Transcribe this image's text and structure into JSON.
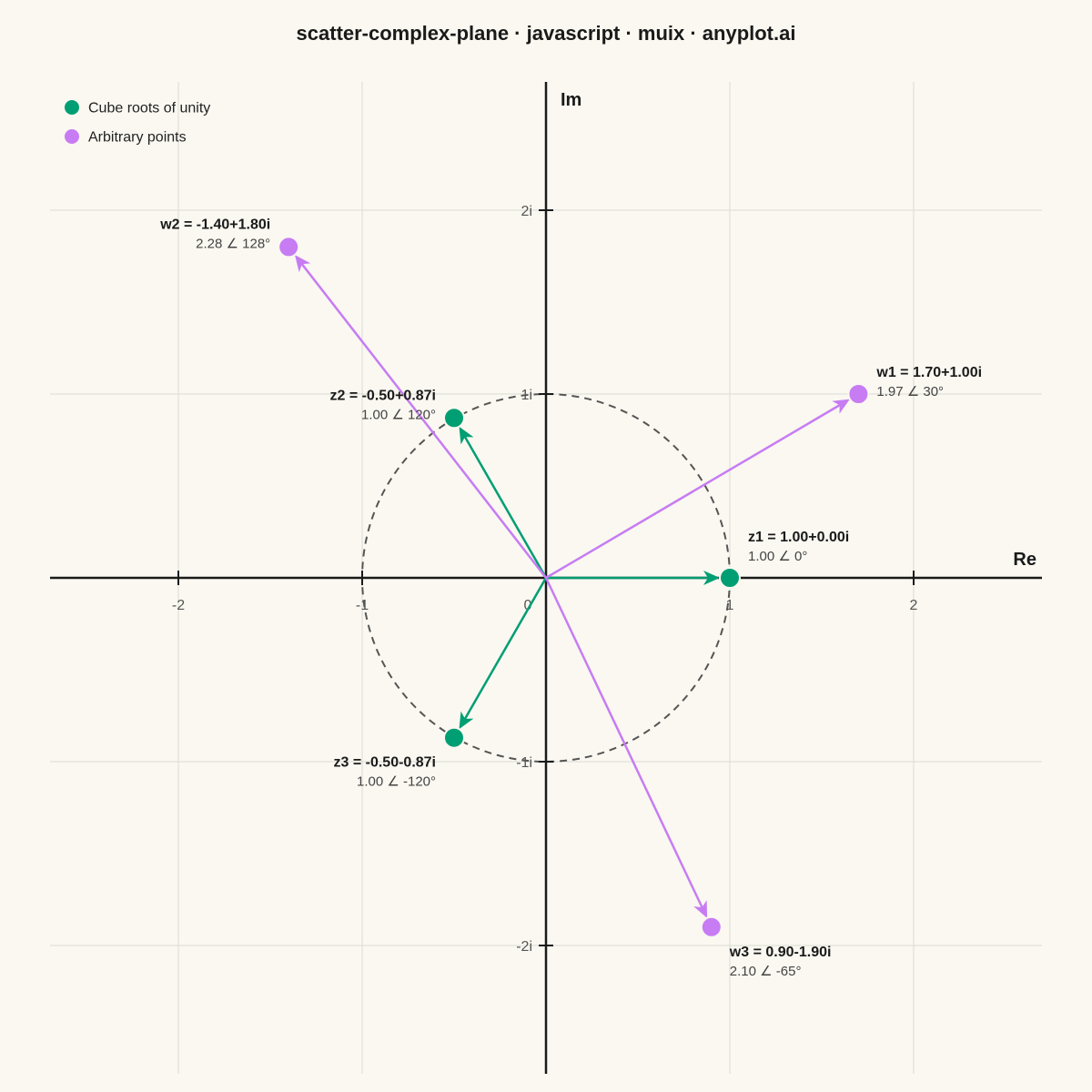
{
  "chart_data": {
    "type": "scatter",
    "title": "scatter-complex-plane · javascript · muix · anyplot.ai",
    "xlabel": "Re",
    "ylabel": "Im",
    "xlim": [
      -2.7,
      2.7
    ],
    "ylim": [
      -2.7,
      2.7
    ],
    "x_ticks": [
      {
        "value": -2,
        "label": "-2"
      },
      {
        "value": -1,
        "label": "-1"
      },
      {
        "value": 0,
        "label": "0"
      },
      {
        "value": 1,
        "label": "1"
      },
      {
        "value": 2,
        "label": "2"
      }
    ],
    "y_ticks": [
      {
        "value": 2,
        "label": "2i"
      },
      {
        "value": 1,
        "label": "1i"
      },
      {
        "value": -1,
        "label": "-1i"
      },
      {
        "value": -2,
        "label": "-2i"
      }
    ],
    "grid": true,
    "unit_circle": true,
    "legend_position": "top-left",
    "series": [
      {
        "name": "Cube roots of unity",
        "color": "#009E73",
        "points": [
          {
            "re": 1.0,
            "im": 0.0,
            "label": "z1 = 1.00+0.00i",
            "polar": "1.00 ∠ 0°"
          },
          {
            "re": -0.5,
            "im": 0.87,
            "label": "z2 = -0.50+0.87i",
            "polar": "1.00 ∠ 120°"
          },
          {
            "re": -0.5,
            "im": -0.87,
            "label": "z3 = -0.50-0.87i",
            "polar": "1.00 ∠ -120°"
          }
        ]
      },
      {
        "name": "Arbitrary points",
        "color": "#C77CF3",
        "points": [
          {
            "re": 1.7,
            "im": 1.0,
            "label": "w1 = 1.70+1.00i",
            "polar": "1.97 ∠ 30°"
          },
          {
            "re": -1.4,
            "im": 1.8,
            "label": "w2 = -1.40+1.80i",
            "polar": "2.28 ∠ 128°"
          },
          {
            "re": 0.9,
            "im": -1.9,
            "label": "w3 = 0.90-1.90i",
            "polar": "2.10 ∠ -65°"
          }
        ]
      }
    ]
  }
}
